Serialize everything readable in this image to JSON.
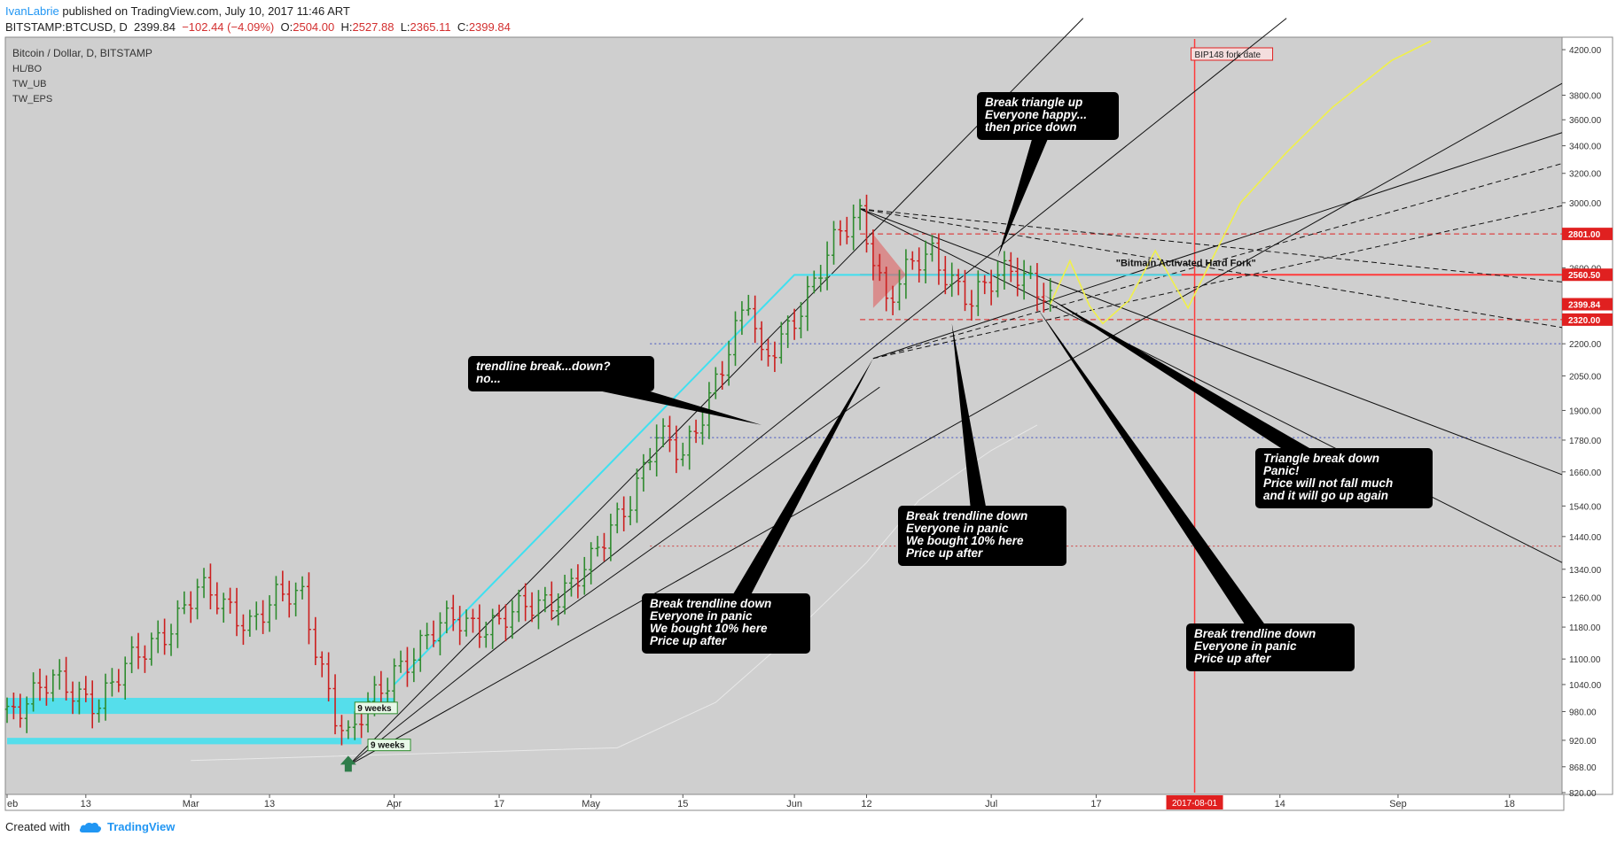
{
  "header": {
    "author": "IvanLabrie",
    "published": "published on TradingView.com, July 10, 2017 11:46 ART",
    "symbol": "BITSTAMP:BTCUSD, D",
    "last": "2399.84",
    "change": "−102.44 (−4.09%)",
    "o_label": "O:",
    "o": "2504.00",
    "h_label": "H:",
    "h": "2527.88",
    "l_label": "L:",
    "l": "2365.11",
    "c_label": "C:",
    "c": "2399.84"
  },
  "footer": {
    "created_with": "Created with",
    "brand": "TradingView"
  },
  "colors": {
    "panel_bg": "#cfcfcf",
    "bull": "#2e8b2e",
    "bear": "#cc1f1f",
    "cyan": "#3fe0f0",
    "yellow": "#f0f04a",
    "fork_line": "#ff3b3b",
    "label_red": "#e02020"
  },
  "chart_data": {
    "type": "candlestick",
    "title": "Bitcoin / Dollar, D, BITSTAMP",
    "indicators": [
      "HL/BO",
      "TW_UB",
      "TW_EPS"
    ],
    "y_scale": "log",
    "ylim": [
      820,
      4300
    ],
    "y_ticks": [
      820,
      868,
      920,
      980,
      1040,
      1100,
      1180,
      1260,
      1340,
      1440,
      1540,
      1660,
      1780,
      1900,
      2050,
      2200,
      2400,
      2600,
      2800,
      3000,
      3200,
      3400,
      3600,
      3800,
      4200
    ],
    "y_tick_labels": [
      "820.00",
      "868.00",
      "920.00",
      "980.00",
      "1040.00",
      "1100.00",
      "1180.00",
      "1260.00",
      "1340.00",
      "1440.00",
      "1540.00",
      "1660.00",
      "1780.00",
      "1900.00",
      "2050.00",
      "2200.00",
      "2400.00",
      "2600.00",
      "2800.00",
      "3000.00",
      "3200.00",
      "3400.00",
      "3600.00",
      "3800.00",
      "4200.00"
    ],
    "x_range": [
      "2017-02-01",
      "2017-09-26"
    ],
    "x_ticks": [
      {
        "date": "2017-02-01",
        "label": "eb"
      },
      {
        "date": "2017-02-13",
        "label": "13"
      },
      {
        "date": "2017-03-01",
        "label": "Mar"
      },
      {
        "date": "2017-03-13",
        "label": "13"
      },
      {
        "date": "2017-04-01",
        "label": "Apr"
      },
      {
        "date": "2017-04-17",
        "label": "17"
      },
      {
        "date": "2017-05-01",
        "label": "May"
      },
      {
        "date": "2017-05-15",
        "label": "15"
      },
      {
        "date": "2017-06-01",
        "label": "Jun"
      },
      {
        "date": "2017-06-12",
        "label": "12"
      },
      {
        "date": "2017-07-01",
        "label": "Jul"
      },
      {
        "date": "2017-07-17",
        "label": "17"
      },
      {
        "date": "2017-08-14",
        "label": "14"
      },
      {
        "date": "2017-09-01",
        "label": "Sep"
      },
      {
        "date": "2017-09-18",
        "label": "18"
      }
    ],
    "series": [
      {
        "date": "2017-02-01",
        "close": 985
      },
      {
        "date": "2017-02-08",
        "close": 1040
      },
      {
        "date": "2017-02-15",
        "close": 1008
      },
      {
        "date": "2017-02-22",
        "close": 1120
      },
      {
        "date": "2017-03-02",
        "close": 1275
      },
      {
        "date": "2017-03-10",
        "close": 1200
      },
      {
        "date": "2017-03-14",
        "close": 1250
      },
      {
        "date": "2017-03-18",
        "close": 1260
      },
      {
        "date": "2017-03-23",
        "close": 980
      },
      {
        "date": "2017-03-25",
        "close": 918
      },
      {
        "date": "2017-04-01",
        "close": 1080
      },
      {
        "date": "2017-04-10",
        "close": 1200
      },
      {
        "date": "2017-04-17",
        "close": 1190
      },
      {
        "date": "2017-04-25",
        "close": 1260
      },
      {
        "date": "2017-05-01",
        "close": 1350
      },
      {
        "date": "2017-05-07",
        "close": 1580
      },
      {
        "date": "2017-05-11",
        "close": 1800
      },
      {
        "date": "2017-05-15",
        "close": 1700
      },
      {
        "date": "2017-05-20",
        "close": 2050
      },
      {
        "date": "2017-05-25",
        "close": 2400
      },
      {
        "date": "2017-05-27",
        "close": 2100
      },
      {
        "date": "2017-05-31",
        "close": 2300
      },
      {
        "date": "2017-06-04",
        "close": 2500
      },
      {
        "date": "2017-06-08",
        "close": 2800
      },
      {
        "date": "2017-06-11",
        "close": 2950
      },
      {
        "date": "2017-06-13",
        "close": 2700
      },
      {
        "date": "2017-06-15",
        "close": 2400
      },
      {
        "date": "2017-06-19",
        "close": 2600
      },
      {
        "date": "2017-06-22",
        "close": 2700
      },
      {
        "date": "2017-06-25",
        "close": 2550
      },
      {
        "date": "2017-06-28",
        "close": 2400
      },
      {
        "date": "2017-07-01",
        "close": 2500
      },
      {
        "date": "2017-07-04",
        "close": 2620
      },
      {
        "date": "2017-07-07",
        "close": 2550
      },
      {
        "date": "2017-07-10",
        "close": 2399.84
      }
    ],
    "price_labels": [
      {
        "value": 2801,
        "label": "2801.00"
      },
      {
        "value": 2560.5,
        "label": "2560.50"
      },
      {
        "value": 2399.84,
        "label": "2399.84"
      },
      {
        "value": 2320,
        "label": "2320.00"
      }
    ],
    "vertical_marker": {
      "date": "2017-08-01",
      "label": "2017-08-01",
      "text": "BIP148 fork date"
    },
    "annotations": [
      {
        "id": "trendline-break",
        "lines": [
          "trendline break...down?",
          "no..."
        ],
        "target_date": "2017-05-27",
        "target_price": 1840
      },
      {
        "id": "break-triangle-up",
        "lines": [
          "Break triangle up",
          "Everyone happy...",
          "then price down"
        ],
        "target_date": "2017-07-02",
        "target_price": 2660
      },
      {
        "id": "break-down-1",
        "lines": [
          "Break trendline down",
          "Everyone in panic",
          "We bought 10% here",
          "Price up after"
        ],
        "target_date": "2017-06-13",
        "target_price": 2130
      },
      {
        "id": "break-down-2",
        "lines": [
          "Break trendline down",
          "Everyone in panic",
          "We bought 10% here",
          "Price up after"
        ],
        "target_date": "2017-06-25",
        "target_price": 2300
      },
      {
        "id": "break-down-3",
        "lines": [
          "Break trendline down",
          "Everyone in panic",
          "Price up after"
        ],
        "target_date": "2017-07-08",
        "target_price": 2380
      },
      {
        "id": "triangle-break-down",
        "lines": [
          "Triangle break down",
          "Panic!",
          "Price will not fall much",
          "and it will go up again"
        ],
        "target_date": "2017-07-09",
        "target_price": 2450
      }
    ],
    "hard_fork_text": "\"Bitmain Activated Hard Fork\"",
    "weeks_labels": [
      {
        "label": "9 weeks",
        "date": "2017-03-28",
        "price": 908
      },
      {
        "label": "9 weeks",
        "date": "2017-03-26",
        "price": 985
      }
    ],
    "projection": [
      {
        "date": "2017-07-10",
        "price": 2400
      },
      {
        "date": "2017-07-13",
        "price": 2640
      },
      {
        "date": "2017-07-16",
        "price": 2390
      },
      {
        "date": "2017-07-18",
        "price": 2300
      },
      {
        "date": "2017-07-22",
        "price": 2420
      },
      {
        "date": "2017-07-26",
        "price": 2700
      },
      {
        "date": "2017-07-29",
        "price": 2500
      },
      {
        "date": "2017-07-31",
        "price": 2380
      },
      {
        "date": "2017-08-03",
        "price": 2600
      },
      {
        "date": "2017-08-08",
        "price": 3000
      },
      {
        "date": "2017-08-15",
        "price": 3350
      },
      {
        "date": "2017-08-22",
        "price": 3700
      },
      {
        "date": "2017-08-31",
        "price": 4100
      },
      {
        "date": "2017-09-06",
        "price": 4280
      }
    ]
  }
}
